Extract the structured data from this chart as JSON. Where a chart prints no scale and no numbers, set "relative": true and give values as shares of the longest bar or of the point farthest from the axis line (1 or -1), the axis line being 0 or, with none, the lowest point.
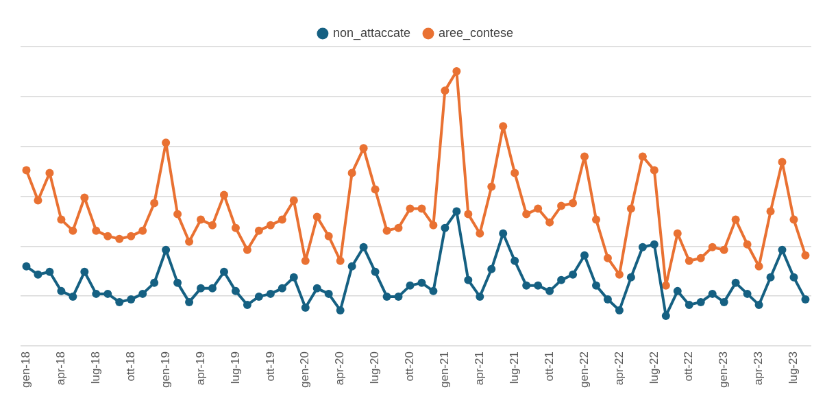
{
  "chart_data": {
    "type": "line",
    "relative": true,
    "grid": "y",
    "legend": "top",
    "marker": "circle",
    "line_style": "solid",
    "categories": [
      "gen-18",
      null,
      null,
      "apr-18",
      null,
      null,
      "lug-18",
      null,
      null,
      "ott-18",
      null,
      null,
      "gen-19",
      null,
      null,
      "apr-19",
      null,
      null,
      "lug-19",
      null,
      null,
      "ott-19",
      null,
      null,
      "gen-20",
      null,
      null,
      "apr-20",
      null,
      null,
      "lug-20",
      null,
      null,
      "ott-20",
      null,
      null,
      "gen-21",
      null,
      null,
      "apr-21",
      null,
      null,
      "lug-21",
      null,
      null,
      "ott-21",
      null,
      null,
      "gen-22",
      null,
      null,
      "apr-22",
      null,
      null,
      "lug-22",
      null,
      null,
      "ott-22",
      null,
      null,
      "gen-23",
      null,
      null,
      "apr-23",
      null,
      null,
      "lug-23",
      null
    ],
    "series": [
      {
        "name": "non_attaccate",
        "color": "#156082",
        "values": [
          0.29,
          0.26,
          0.27,
          0.2,
          0.18,
          0.27,
          0.19,
          0.19,
          0.16,
          0.17,
          0.19,
          0.23,
          0.35,
          0.23,
          0.16,
          0.21,
          0.21,
          0.27,
          0.2,
          0.15,
          0.18,
          0.19,
          0.21,
          0.25,
          0.14,
          0.21,
          0.19,
          0.13,
          0.29,
          0.36,
          0.27,
          0.18,
          0.18,
          0.22,
          0.23,
          0.2,
          0.43,
          0.49,
          0.24,
          0.18,
          0.28,
          0.41,
          0.31,
          0.22,
          0.22,
          0.2,
          0.24,
          0.26,
          0.33,
          0.22,
          0.17,
          0.13,
          0.25,
          0.36,
          0.37,
          0.11,
          0.2,
          0.15,
          0.16,
          0.19,
          0.16,
          0.23,
          0.19,
          0.15,
          0.25,
          0.35,
          0.25,
          0.17
        ]
      },
      {
        "name": "aree_contese",
        "color": "#e97132",
        "values": [
          0.64,
          0.53,
          0.63,
          0.46,
          0.42,
          0.54,
          0.42,
          0.4,
          0.39,
          0.4,
          0.42,
          0.52,
          0.74,
          0.48,
          0.38,
          0.46,
          0.44,
          0.55,
          0.43,
          0.35,
          0.42,
          0.44,
          0.46,
          0.53,
          0.31,
          0.47,
          0.4,
          0.31,
          0.63,
          0.72,
          0.57,
          0.42,
          0.43,
          0.5,
          0.5,
          0.44,
          0.93,
          1.0,
          0.48,
          0.41,
          0.58,
          0.8,
          0.63,
          0.48,
          0.5,
          0.45,
          0.51,
          0.52,
          0.69,
          0.46,
          0.32,
          0.26,
          0.5,
          0.69,
          0.64,
          0.22,
          0.41,
          0.31,
          0.32,
          0.36,
          0.35,
          0.46,
          0.37,
          0.29,
          0.49,
          0.67,
          0.46,
          0.33
        ]
      }
    ]
  }
}
